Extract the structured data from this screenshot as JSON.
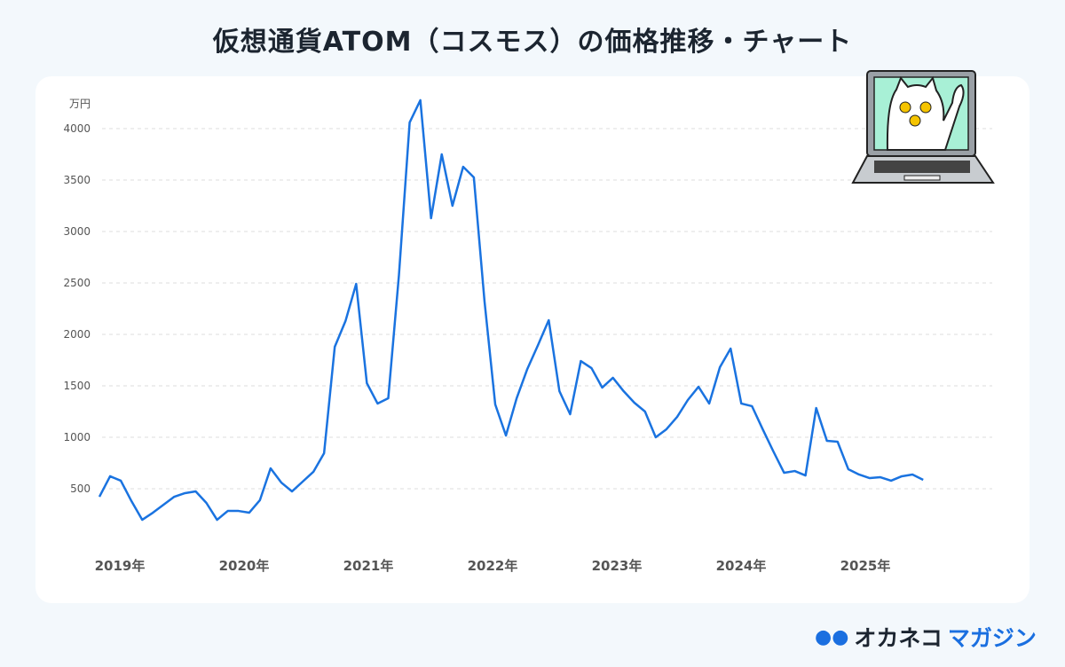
{
  "title": "仮想通貨ATOM（コスモス）の価格推移・チャート",
  "logo": {
    "part1": "オカネコ",
    "part2": "マガジン"
  },
  "colors": {
    "line": "#1a73e0",
    "brand": "#1a6fe0",
    "grid": "#dddddd"
  },
  "chart_data": {
    "type": "line",
    "title": "仮想通貨ATOM（コスモス）の価格推移・チャート",
    "ylabel": "万円",
    "xlabel": "",
    "ylim": [
      0,
      4300
    ],
    "yticks": [
      500,
      1000,
      1500,
      2000,
      2500,
      3000,
      3500,
      4000
    ],
    "xticks": [
      {
        "value": 2019,
        "label": "2019年"
      },
      {
        "value": 2020,
        "label": "2020年"
      },
      {
        "value": 2021,
        "label": "2021年"
      },
      {
        "value": 2022,
        "label": "2022年"
      },
      {
        "value": 2023,
        "label": "2023年"
      },
      {
        "value": 2024,
        "label": "2024年"
      },
      {
        "value": 2025,
        "label": "2025年"
      }
    ],
    "xlim": [
      2019,
      2026
    ],
    "x_start": 2019.05,
    "x_end": 2025.68,
    "grid": true,
    "series": [
      {
        "name": "ATOM",
        "values": [
          422,
          621,
          578,
          379,
          198,
          267,
          345,
          422,
          457,
          474,
          362,
          198,
          284,
          284,
          267,
          388,
          698,
          560,
          474,
          569,
          664,
          845,
          1879,
          2129,
          2491,
          1526,
          1328,
          1379,
          2578,
          4060,
          4276,
          3129,
          3750,
          3250,
          3629,
          3526,
          2319,
          1319,
          1017,
          1379,
          1664,
          1897,
          2138,
          1448,
          1224,
          1741,
          1672,
          1483,
          1578,
          1448,
          1336,
          1250,
          1000,
          1078,
          1198,
          1362,
          1491,
          1328,
          1681,
          1862,
          1328,
          1302,
          1078,
          862,
          655,
          672,
          629,
          1284,
          966,
          957,
          690,
          638,
          603,
          612,
          578,
          621,
          638,
          586
        ]
      }
    ]
  }
}
